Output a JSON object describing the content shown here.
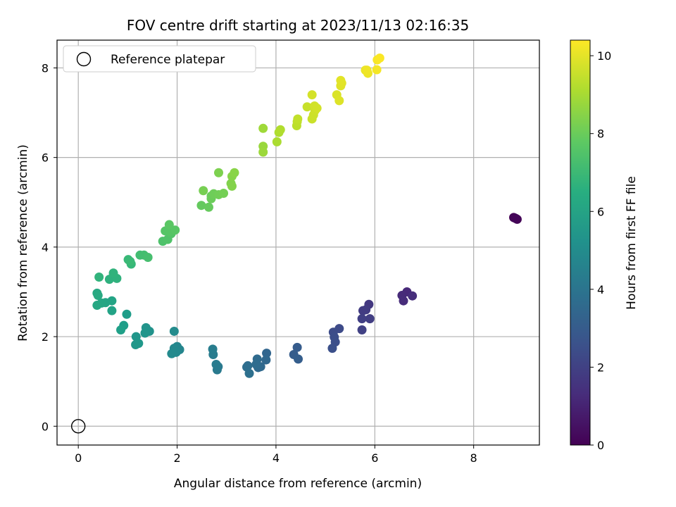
{
  "chart_data": {
    "type": "scatter",
    "title": "FOV centre drift starting at 2023/11/13 02:16:35",
    "xlabel": "Angular distance from reference (arcmin)",
    "ylabel": "Rotation from reference (arcmin)",
    "xlim": [
      -0.43,
      9.33
    ],
    "ylim": [
      -0.42,
      8.62
    ],
    "xticks": [
      0,
      2,
      4,
      6,
      8
    ],
    "yticks": [
      0,
      2,
      4,
      6,
      8
    ],
    "grid": true,
    "legend": {
      "placement": "top-left",
      "entries": [
        "Reference platepar"
      ]
    },
    "colorbar": {
      "label": "Hours from first FF file",
      "min": 0,
      "max": 10.4,
      "ticks": [
        0,
        2,
        4,
        6,
        8,
        10
      ],
      "colormap": "viridis"
    },
    "reference_point": {
      "name": "Reference platepar",
      "x": 0,
      "y": 0
    },
    "series": [
      {
        "marker": "filled-circle",
        "points": [
          [
            8.81,
            4.66,
            0.0
          ],
          [
            8.85,
            4.64,
            0.05
          ],
          [
            8.88,
            4.62,
            0.1
          ],
          [
            8.83,
            4.65,
            0.12
          ],
          [
            6.65,
            3.0,
            1.2
          ],
          [
            6.55,
            2.92,
            1.25
          ],
          [
            6.58,
            2.8,
            1.3
          ],
          [
            6.76,
            2.91,
            1.35
          ],
          [
            5.88,
            2.72,
            1.7
          ],
          [
            5.82,
            2.6,
            1.8
          ],
          [
            5.76,
            2.58,
            1.85
          ],
          [
            5.9,
            2.4,
            1.9
          ],
          [
            5.74,
            2.4,
            1.95
          ],
          [
            5.74,
            2.15,
            2.0
          ],
          [
            5.28,
            2.18,
            2.35
          ],
          [
            5.16,
            2.1,
            2.4
          ],
          [
            5.18,
            1.99,
            2.45
          ],
          [
            5.2,
            1.88,
            2.5
          ],
          [
            5.14,
            1.74,
            2.55
          ],
          [
            4.43,
            1.76,
            3.0
          ],
          [
            4.36,
            1.6,
            3.05
          ],
          [
            4.45,
            1.5,
            3.1
          ],
          [
            3.81,
            1.63,
            3.4
          ],
          [
            3.8,
            1.48,
            3.45
          ],
          [
            3.69,
            1.33,
            3.5
          ],
          [
            3.64,
            1.31,
            3.55
          ],
          [
            3.62,
            1.5,
            3.6
          ],
          [
            3.6,
            1.38,
            3.65
          ],
          [
            3.43,
            1.35,
            3.7
          ],
          [
            3.41,
            1.32,
            3.75
          ],
          [
            3.46,
            1.18,
            3.8
          ],
          [
            2.83,
            1.33,
            4.2
          ],
          [
            2.81,
            1.26,
            4.25
          ],
          [
            2.79,
            1.38,
            4.3
          ],
          [
            2.73,
            1.6,
            4.35
          ],
          [
            2.72,
            1.72,
            4.4
          ],
          [
            2.05,
            1.71,
            4.75
          ],
          [
            2.0,
            1.78,
            4.8
          ],
          [
            1.94,
            1.74,
            4.85
          ],
          [
            1.98,
            1.65,
            4.9
          ],
          [
            1.89,
            1.62,
            4.95
          ],
          [
            1.94,
            2.12,
            5.0
          ],
          [
            1.44,
            2.12,
            5.3
          ],
          [
            1.37,
            2.2,
            5.35
          ],
          [
            1.35,
            2.08,
            5.4
          ],
          [
            1.17,
            2.0,
            5.45
          ],
          [
            1.16,
            1.82,
            5.5
          ],
          [
            1.22,
            1.85,
            5.55
          ],
          [
            0.98,
            2.5,
            5.75
          ],
          [
            0.92,
            2.25,
            5.8
          ],
          [
            0.86,
            2.15,
            5.85
          ],
          [
            0.68,
            2.58,
            6.0
          ],
          [
            0.68,
            2.8,
            6.05
          ],
          [
            0.55,
            2.76,
            6.1
          ],
          [
            0.47,
            2.75,
            6.15
          ],
          [
            0.38,
            2.7,
            6.2
          ],
          [
            0.38,
            2.97,
            6.25
          ],
          [
            0.4,
            2.92,
            6.3
          ],
          [
            0.63,
            3.28,
            6.6
          ],
          [
            0.78,
            3.3,
            6.65
          ],
          [
            0.71,
            3.42,
            6.7
          ],
          [
            0.42,
            3.33,
            6.75
          ],
          [
            1.07,
            3.62,
            6.95
          ],
          [
            1.01,
            3.72,
            7.0
          ],
          [
            1.05,
            3.68,
            7.05
          ],
          [
            1.25,
            3.82,
            7.2
          ],
          [
            1.33,
            3.82,
            7.25
          ],
          [
            1.41,
            3.77,
            7.3
          ],
          [
            1.71,
            4.13,
            7.45
          ],
          [
            1.81,
            4.17,
            7.5
          ],
          [
            1.88,
            4.3,
            7.55
          ],
          [
            1.76,
            4.36,
            7.6
          ],
          [
            1.86,
            4.35,
            7.62
          ],
          [
            1.96,
            4.38,
            7.65
          ],
          [
            1.84,
            4.5,
            7.7
          ],
          [
            2.49,
            4.93,
            7.9
          ],
          [
            2.64,
            4.89,
            7.95
          ],
          [
            2.69,
            5.14,
            8.0
          ],
          [
            2.69,
            5.08,
            8.05
          ],
          [
            2.74,
            5.19,
            8.1
          ],
          [
            2.84,
            5.17,
            8.15
          ],
          [
            2.94,
            5.2,
            8.2
          ],
          [
            2.53,
            5.26,
            8.25
          ],
          [
            2.84,
            5.66,
            8.35
          ],
          [
            3.09,
            5.42,
            8.4
          ],
          [
            3.11,
            5.36,
            8.45
          ],
          [
            3.11,
            5.58,
            8.5
          ],
          [
            3.16,
            5.66,
            8.55
          ],
          [
            3.74,
            6.25,
            8.8
          ],
          [
            3.74,
            6.12,
            8.85
          ],
          [
            3.74,
            6.65,
            8.9
          ],
          [
            4.02,
            6.35,
            9.1
          ],
          [
            4.06,
            6.56,
            9.15
          ],
          [
            4.09,
            6.62,
            9.2
          ],
          [
            4.42,
            6.71,
            9.35
          ],
          [
            4.43,
            6.8,
            9.4
          ],
          [
            4.44,
            6.86,
            9.45
          ],
          [
            4.63,
            7.13,
            9.55
          ],
          [
            4.73,
            6.86,
            9.6
          ],
          [
            4.76,
            6.95,
            9.62
          ],
          [
            4.79,
            7.05,
            9.65
          ],
          [
            4.78,
            7.15,
            9.7
          ],
          [
            4.83,
            7.1,
            9.72
          ],
          [
            4.73,
            7.4,
            9.75
          ],
          [
            5.23,
            7.4,
            9.85
          ],
          [
            5.28,
            7.27,
            9.9
          ],
          [
            5.31,
            7.6,
            9.92
          ],
          [
            5.33,
            7.66,
            9.95
          ],
          [
            5.31,
            7.72,
            9.97
          ],
          [
            5.81,
            7.95,
            10.1
          ],
          [
            5.86,
            7.88,
            10.15
          ],
          [
            5.84,
            7.95,
            10.18
          ],
          [
            6.04,
            7.96,
            10.25
          ],
          [
            6.05,
            8.18,
            10.3
          ],
          [
            6.1,
            8.22,
            10.35
          ]
        ]
      }
    ]
  }
}
